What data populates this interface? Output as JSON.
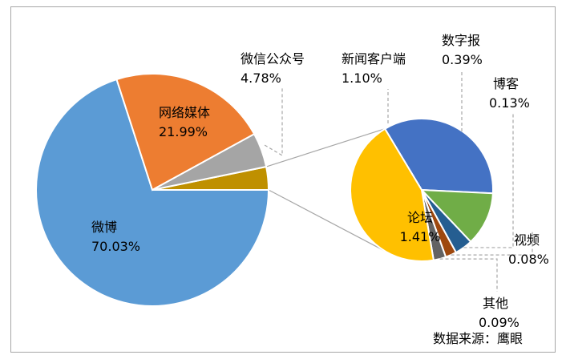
{
  "chart_data": {
    "type": "pie",
    "variant": "pie-of-pie",
    "title": "",
    "slices": [
      {
        "label": "微博",
        "value": 70.03,
        "display": "70.03%",
        "color": "#5b9bd5"
      },
      {
        "label": "网络媒体",
        "value": 21.99,
        "display": "21.99%",
        "color": "#ed7d31"
      },
      {
        "label": "微信公众号",
        "value": 4.78,
        "display": "4.78%",
        "color": "#a5a5a5"
      }
    ],
    "secondary_group_total": 3.2,
    "secondary_group_color": "#bf9000",
    "secondary_slices": [
      {
        "label": "新闻客户端",
        "value": 1.1,
        "display": "1.10%",
        "color": "#4472c4"
      },
      {
        "label": "数字报",
        "value": 0.39,
        "display": "0.39%",
        "color": "#70ad47"
      },
      {
        "label": "博客",
        "value": 0.13,
        "display": "0.13%",
        "color": "#255e91"
      },
      {
        "label": "视频",
        "value": 0.08,
        "display": "0.08%",
        "color": "#9e480e"
      },
      {
        "label": "其他",
        "value": 0.09,
        "display": "0.09%",
        "color": "#636363"
      },
      {
        "label": "论坛",
        "value": 1.41,
        "display": "1.41%",
        "color": "#ffc000"
      }
    ],
    "source_note": "数据来源：鹰眼"
  }
}
